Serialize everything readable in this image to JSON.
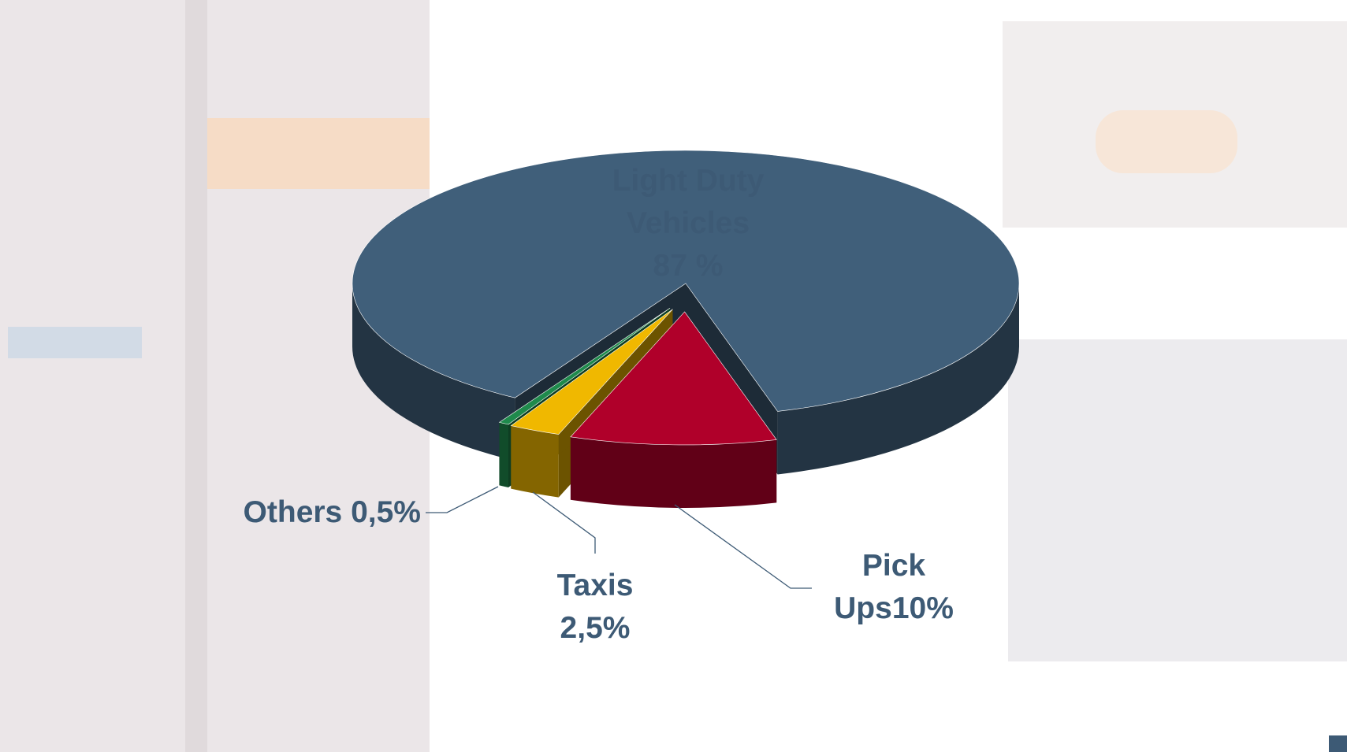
{
  "chart_data": {
    "type": "pie3d",
    "categories": [
      "Light Duty Vehicles",
      "Pick Ups",
      "Taxis",
      "Others"
    ],
    "values": [
      87,
      10,
      2.5,
      0.5
    ],
    "value_labels": [
      "87 %",
      "10%",
      "2,5%",
      "0,5%"
    ],
    "colors": [
      "#405f7a",
      "#b0002a",
      "#f0b800",
      "#1f8a4c"
    ]
  }
}
